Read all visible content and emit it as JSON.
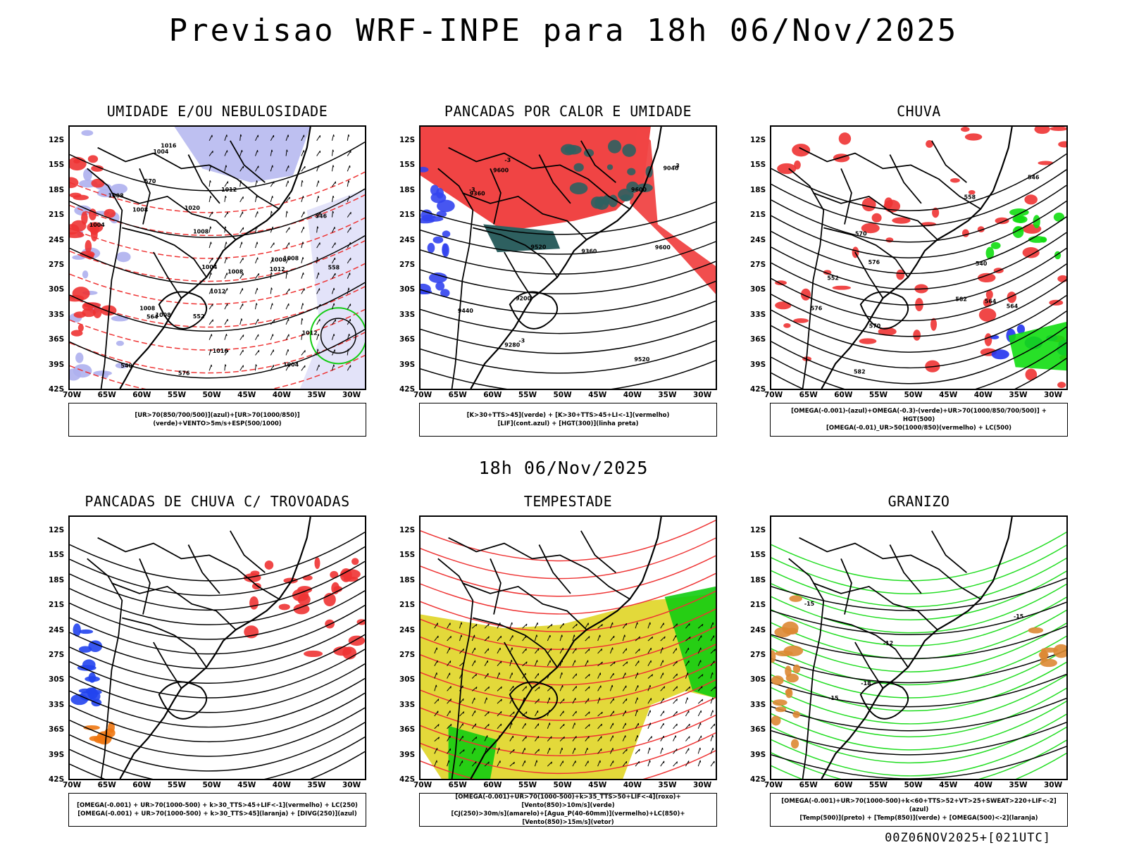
{
  "title": "Previsao WRF-INPE  para 18h 06/Nov/2025",
  "mid_time": "18h 06/Nov/2025",
  "footer": "00Z06NOV2025+[021UTC]",
  "lat_labels": [
    "12S",
    "15S",
    "18S",
    "21S",
    "24S",
    "27S",
    "30S",
    "33S",
    "36S",
    "39S",
    "42S"
  ],
  "lon_labels": [
    "70W",
    "65W",
    "60W",
    "55W",
    "50W",
    "45W",
    "40W",
    "35W",
    "30W"
  ],
  "panels": [
    {
      "id": "umidade",
      "title": "UMIDADE E/OU NEBULOSIDADE",
      "legend": [
        "[UR>70(850/700/500)](azul)+[UR>70(1000/850)](verde)+VENTO>5m/s+ESP(500/1000)"
      ],
      "contour_labels": [
        "1008",
        "1008",
        "1008",
        "1004",
        "1008",
        "1012",
        "1004",
        "1008",
        "1012",
        "1012",
        "1016",
        "1008",
        "1004",
        "1008",
        "1012",
        "1016",
        "1020",
        "1004",
        "1008",
        "552",
        "558",
        "564",
        "570",
        "576",
        "546",
        "540"
      ],
      "colors": {
        "blue": "#aeb0ee",
        "green": "#11cc11",
        "red": "#ee3333"
      }
    },
    {
      "id": "pancadas-calor",
      "title": "PANCADAS POR CALOR E UMIDADE",
      "legend": [
        "[K>30+TTS>45](verde) + [K>30+TTS>45+LI<-1](vermelho)",
        "[LIF](cont.azul) + [HGT(300)](linha preta)"
      ],
      "contour_labels": [
        "9600",
        "9600",
        "9520",
        "9520",
        "9440",
        "9360",
        "9360",
        "9280",
        "9200",
        "9040",
        "9600",
        "-3",
        "-3",
        "-3",
        "-3"
      ],
      "colors": {
        "red": "#f04444",
        "teal": "#2e6060",
        "blue": "#3344ee"
      }
    },
    {
      "id": "chuva",
      "title": "CHUVA",
      "legend": [
        "[OMEGA(-0.001)-(azul)+OMEGA(-0.3)-(verde)+UR>70(1000/850/700/500)] + HGT(500)",
        "[OMEGA(-0.01)_UR>50(1000/850)(vermelho) + LC(500)"
      ],
      "contour_labels": [
        "582",
        "582",
        "576",
        "570",
        "564",
        "558",
        "552",
        "546",
        "540",
        "576",
        "570",
        "564"
      ],
      "colors": {
        "red": "#ee3333",
        "green": "#11dd11",
        "blue": "#2233ee"
      }
    },
    {
      "id": "trovoadas",
      "title": "PANCADAS DE CHUVA C/ TROVOADAS",
      "legend": [
        "[OMEGA(-0.001) + UR>70(1000-500) + k>30_TTS>45+LIF<-1](vermelho) + LC(250)",
        "[OMEGA(-0.001) + UR>70(1000-500) + k>30_TTS>45](laranja) + [DIVG(250)](azul)"
      ],
      "contour_labels": [],
      "colors": {
        "red": "#ee3333",
        "orange": "#ee7711",
        "blue": "#2244ee"
      }
    },
    {
      "id": "tempestade",
      "title": "TEMPESTADE",
      "legend": [
        "[OMEGA(-0.001)+UR>70(1000-500)+k>35_TTS>50+LIF<-4](roxo)+[Vento(850)>10m/s](verde)",
        "[CJ(250)>30m/s](amarelo)+[Agua_P(40-60mm)](vermelho)+LC(850)+[Vento(850)>15m/s](vetor)"
      ],
      "contour_labels": [],
      "colors": {
        "yellow": "#e3d93a",
        "green": "#11cc11",
        "red": "#ee3333"
      }
    },
    {
      "id": "granizo",
      "title": "GRANIZO",
      "legend": [
        "[OMEGA(-0.001)+UR>70(1000-500)+k<60+TTS>52+VT>25+SWEAT>220+LIF<-2](azul)",
        "[Temp(500)](preto) + [Temp(850)](verde) + [OMEGA(500)<-2](laranja)"
      ],
      "contour_labels": [
        "-12",
        "-15",
        "-15",
        "-15",
        "-18"
      ],
      "colors": {
        "green": "#22dd22",
        "orange": "#dd8833",
        "black": "#000000"
      }
    }
  ]
}
